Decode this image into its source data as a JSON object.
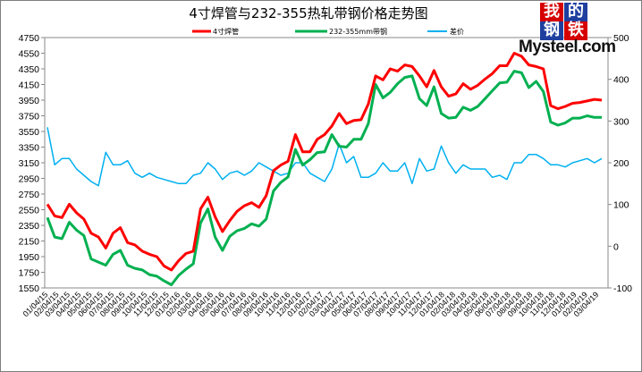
{
  "chart_data": {
    "type": "line",
    "title": "4寸焊管与232-355热轧带钢价格走势图",
    "legend": [
      "4寸焊管",
      "232-355mm带钢",
      "差价"
    ],
    "colors": {
      "pipe": "#ff0000",
      "strip": "#00b050",
      "spread": "#00b0f0"
    },
    "y_left": {
      "ticks": [
        4750,
        4550,
        4350,
        4150,
        3950,
        3750,
        3550,
        3350,
        3150,
        2950,
        2750,
        2550,
        2350,
        2150,
        1950,
        1750,
        1550
      ],
      "lim": [
        1550,
        4750
      ]
    },
    "y_right": {
      "ticks": [
        500,
        400,
        300,
        200,
        100,
        0,
        -100
      ],
      "lim": [
        -100,
        500
      ]
    },
    "x_ticks": [
      "01/04/15",
      "02/04/15",
      "03/04/15",
      "04/04/15",
      "05/04/15",
      "06/04/15",
      "07/04/15",
      "08/04/15",
      "09/04/15",
      "10/04/15",
      "11/04/15",
      "12/04/15",
      "01/04/16",
      "02/04/16",
      "03/04/16",
      "04/04/16",
      "05/04/16",
      "06/04/16",
      "07/04/16",
      "08/04/16",
      "09/04/16",
      "10/04/16",
      "11/04/16",
      "12/04/16",
      "01/04/17",
      "02/04/17",
      "03/04/17",
      "04/04/17",
      "05/04/17",
      "06/04/17",
      "07/04/17",
      "08/04/17",
      "09/04/17",
      "10/04/17",
      "11/04/17",
      "12/04/17",
      "01/04/18",
      "02/04/18",
      "03/04/18",
      "04/04/18",
      "05/04/18",
      "06/04/18",
      "07/04/18",
      "08/04/18",
      "09/04/18",
      "10/04/18",
      "11/04/18",
      "12/04/18",
      "01/04/19",
      "02/04/19",
      "03/04/19"
    ],
    "series": [
      {
        "name": "4寸焊管",
        "axis": "left",
        "color": "#ff0000",
        "values": [
          2620,
          2470,
          2450,
          2620,
          2510,
          2430,
          2250,
          2200,
          2060,
          2250,
          2320,
          2130,
          2100,
          2020,
          1980,
          1950,
          1830,
          1780,
          1900,
          1990,
          2020,
          2560,
          2710,
          2460,
          2270,
          2410,
          2530,
          2600,
          2640,
          2580,
          2730,
          3050,
          3120,
          3170,
          3510,
          3290,
          3290,
          3450,
          3510,
          3620,
          3780,
          3650,
          3690,
          3700,
          3900,
          4260,
          4210,
          4350,
          4320,
          4400,
          4380,
          4260,
          4120,
          4330,
          4120,
          4000,
          4030,
          4160,
          4090,
          4140,
          4220,
          4290,
          4390,
          4390,
          4550,
          4510,
          4400,
          4380,
          4350,
          3880,
          3840,
          3870,
          3910,
          3920,
          3940,
          3960,
          3950
        ]
      },
      {
        "name": "232-355mm带钢",
        "axis": "left",
        "color": "#00b050",
        "values": [
          2450,
          2200,
          2180,
          2390,
          2290,
          2220,
          1920,
          1880,
          1840,
          1980,
          2030,
          1840,
          1800,
          1780,
          1720,
          1700,
          1640,
          1590,
          1710,
          1790,
          1860,
          2380,
          2560,
          2200,
          2030,
          2210,
          2280,
          2310,
          2370,
          2340,
          2430,
          2790,
          2900,
          2970,
          3320,
          3120,
          3190,
          3280,
          3290,
          3510,
          3360,
          3350,
          3450,
          3450,
          3650,
          4150,
          3980,
          4050,
          4160,
          4240,
          4260,
          3970,
          3880,
          4120,
          3780,
          3720,
          3730,
          3860,
          3820,
          3870,
          3970,
          4070,
          4170,
          4180,
          4320,
          4300,
          4110,
          4190,
          4060,
          3670,
          3630,
          3660,
          3720,
          3720,
          3750,
          3730,
          3730
        ]
      },
      {
        "name": "差价",
        "axis": "right",
        "color": "#00b0f0",
        "values": [
          285,
          195,
          210,
          210,
          185,
          170,
          155,
          145,
          225,
          195,
          195,
          205,
          175,
          165,
          175,
          165,
          160,
          155,
          150,
          150,
          170,
          175,
          200,
          185,
          160,
          175,
          180,
          170,
          180,
          200,
          190,
          180,
          170,
          175,
          200,
          200,
          175,
          165,
          155,
          185,
          245,
          200,
          215,
          165,
          165,
          175,
          200,
          180,
          180,
          200,
          150,
          210,
          180,
          185,
          240,
          200,
          175,
          195,
          185,
          185,
          185,
          165,
          170,
          160,
          200,
          200,
          220,
          220,
          210,
          195,
          195,
          190,
          200,
          205,
          210,
          200,
          210
        ]
      }
    ]
  },
  "watermark": {
    "cn": [
      "我",
      "的",
      "钢",
      "铁"
    ],
    "en": "Mysteel.com"
  }
}
